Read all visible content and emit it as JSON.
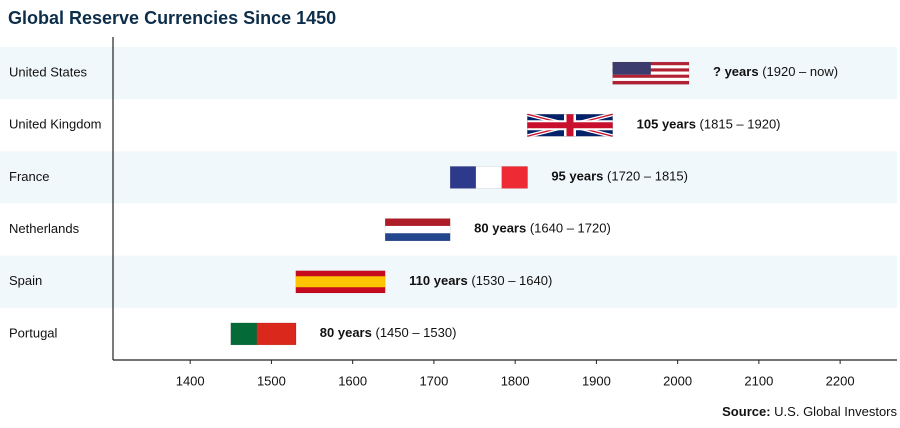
{
  "chart_data": {
    "type": "range-bar",
    "title": "Global Reserve Currencies Since 1450",
    "source_label": "Source:",
    "source": "U.S. Global Investors",
    "categories": [
      "United States",
      "United Kingdom",
      "France",
      "Netherlands",
      "Spain",
      "Portugal"
    ],
    "start": [
      1920,
      1815,
      1720,
      1640,
      1530,
      1450
    ],
    "end": [
      2014,
      1920,
      1815,
      1720,
      1640,
      1530
    ],
    "duration_labels": [
      "? years",
      "105 years",
      "95 years",
      "80 years",
      "110 years",
      "80 years"
    ],
    "range_labels": [
      "(1920 – now)",
      "(1815 – 1920)",
      "(1720 – 1815)",
      "(1640 – 1720)",
      "(1530 – 1640)",
      "(1450 – 1530)"
    ],
    "flags": [
      {
        "dir": "h",
        "colors": [
          "#b22234",
          "#ffffff",
          "#b22234",
          "#ffffff",
          "#b22234",
          "#ffffff",
          "#b22234"
        ],
        "canton": "#3c3b6e"
      },
      {
        "dir": "cross",
        "colors": [
          "#012169",
          "#ffffff",
          "#c8102e"
        ]
      },
      {
        "dir": "v",
        "colors": [
          "#2d3a8c",
          "#ffffff",
          "#ee2a35"
        ]
      },
      {
        "dir": "h",
        "colors": [
          "#ae1c28",
          "#ffffff",
          "#21468b"
        ]
      },
      {
        "dir": "h",
        "colors": [
          "#c60b1e",
          "#ffc400",
          "#ffc400",
          "#c60b1e"
        ]
      },
      {
        "dir": "v",
        "colors": [
          "#046a38",
          "#046a38",
          "#da291c",
          "#da291c",
          "#da291c"
        ]
      }
    ],
    "xlim": [
      1305,
      2270
    ],
    "xticks": [
      1400,
      1500,
      1600,
      1700,
      1800,
      1900,
      2000,
      2100,
      2200
    ],
    "band_color": "#f1f8fb"
  }
}
